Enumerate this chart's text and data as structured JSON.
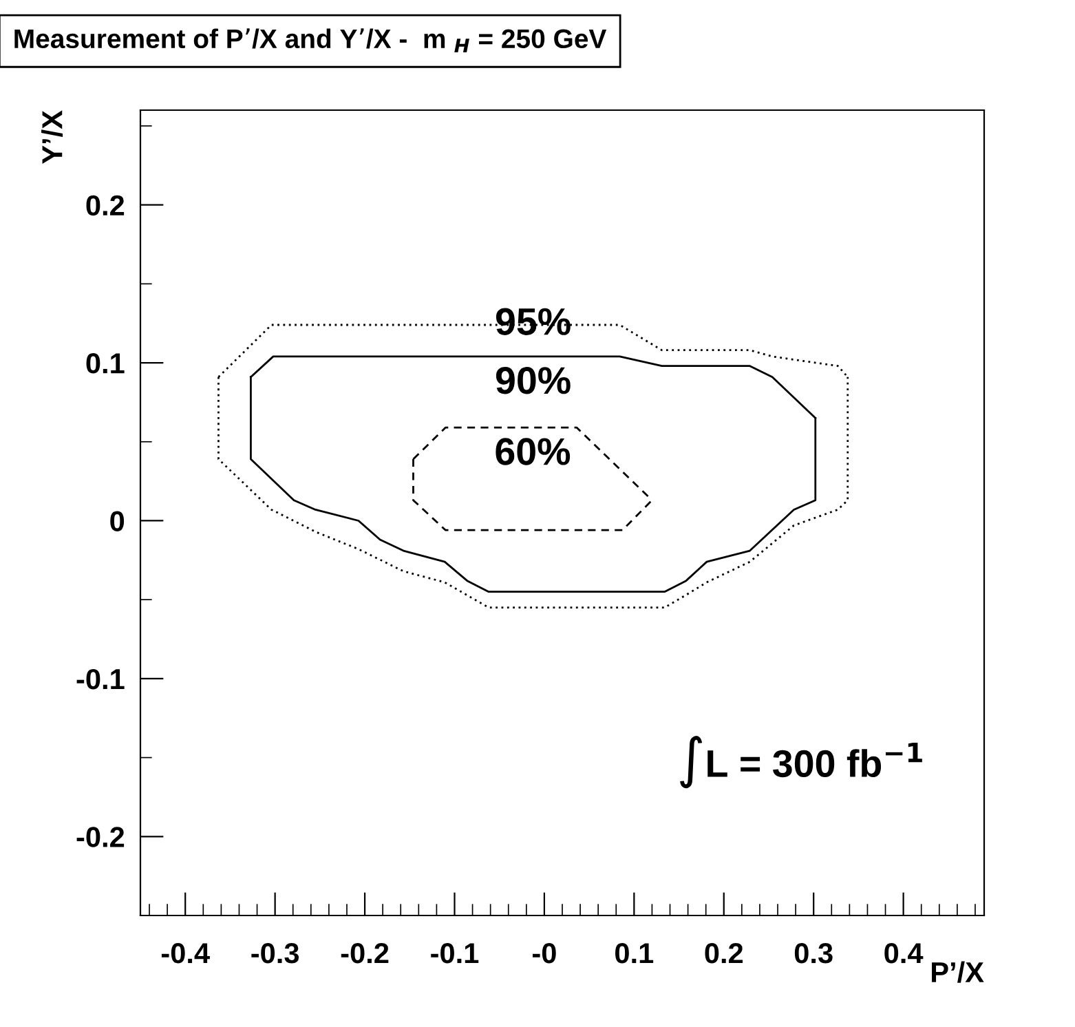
{
  "chart_data": {
    "type": "line",
    "title": "Measurement of P’/X and Y’/X -  m $_{H}$ = 250 GeV",
    "xlabel": "P’/X",
    "ylabel": "Y’/X",
    "xlim": [
      -0.45,
      0.49
    ],
    "ylim": [
      -0.25,
      0.26
    ],
    "xticks": [
      -0.4,
      -0.3,
      -0.2,
      -0.1,
      {
        "value": 0,
        "label": "-0"
      },
      0.1,
      0.2,
      0.3,
      0.4
    ],
    "yticks": [
      -0.2,
      -0.1,
      0,
      0.1,
      0.2
    ],
    "grid": false,
    "legend": false,
    "marker": "none",
    "series": [
      {
        "name": "95%",
        "color": "#000000",
        "line_style": "dotted",
        "x": [
          -0.363,
          -0.304,
          0.084,
          0.131,
          0.229,
          0.254,
          0.327,
          0.338
        ],
        "values": [
          0.091,
          0.124,
          0.124,
          0.108,
          0.108,
          0.104,
          0.098,
          0.091
        ]
      },
      {
        "name": "90%",
        "color": "#000000",
        "line_style": "solid",
        "x": [
          -0.327,
          -0.302,
          0.084,
          0.131,
          0.229,
          0.254,
          0.302
        ],
        "values": [
          0.091,
          0.104,
          0.104,
          0.098,
          0.098,
          0.091,
          0.065
        ]
      },
      {
        "name": "60%",
        "color": "#000000",
        "line_style": "dashed",
        "x": [
          -0.146,
          -0.11,
          0.036,
          0.12
        ],
        "values": [
          0.039,
          0.059,
          0.059,
          0.013
        ]
      },
      {
        "color": "#000000",
        "line_style": "dotted",
        "x": [
          -0.363,
          -0.363,
          -0.304,
          -0.255,
          -0.207,
          -0.157,
          -0.111,
          -0.062,
          0.134,
          0.158,
          0.181,
          0.229,
          0.278,
          0.327,
          0.338,
          0.338
        ],
        "values": [
          0.091,
          0.039,
          0.007,
          -0.007,
          -0.018,
          -0.032,
          -0.039,
          -0.055,
          -0.055,
          -0.047,
          -0.039,
          -0.026,
          -0.003,
          0.007,
          0.013,
          0.091
        ]
      },
      {
        "color": "#000000",
        "line_style": "solid",
        "x": [
          -0.327,
          -0.327,
          -0.279,
          -0.255,
          -0.207,
          -0.183,
          -0.157,
          -0.111,
          -0.086,
          -0.062,
          0.134,
          0.158,
          0.181,
          0.229,
          0.278,
          0.302,
          0.302
        ],
        "values": [
          0.091,
          0.039,
          0.013,
          0.007,
          0.0,
          -0.012,
          -0.019,
          -0.026,
          -0.038,
          -0.045,
          -0.045,
          -0.038,
          -0.026,
          -0.019,
          0.007,
          0.013,
          0.065
        ]
      },
      {
        "color": "#000000",
        "line_style": "dashed",
        "x": [
          -0.146,
          -0.146,
          -0.11,
          0.087,
          0.12
        ],
        "values": [
          0.039,
          0.013,
          -0.006,
          -0.006,
          0.013
        ]
      }
    ],
    "annotations": [
      "∫L = 300 fb$^{−1}$"
    ]
  }
}
